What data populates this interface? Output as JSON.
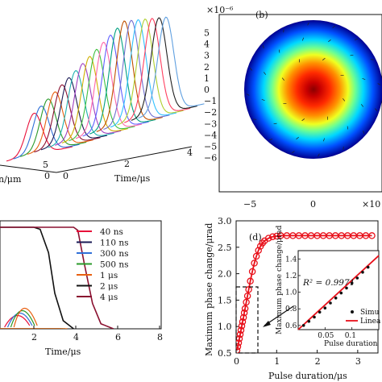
{
  "panel_a": {
    "x_label": "Time/μs",
    "x_ticks": [
      "0",
      "2",
      "4"
    ],
    "y_tick_visible": "5",
    "y_tick_0": "0",
    "y_label_fragment": "n/μm"
  },
  "panel_b": {
    "label": "(b)",
    "exponent": "×10⁻⁶",
    "exponent_right": "×10",
    "y_ticks": [
      "5",
      "4",
      "3",
      "2",
      "1",
      "0",
      "−1",
      "−2",
      "−3",
      "−4",
      "−5",
      "−6"
    ],
    "x_ticks": [
      "−5",
      "0"
    ],
    "colors": [
      "#00008f",
      "#0050ff",
      "#00d8ff",
      "#60ff90",
      "#e0ff20",
      "#ffa000",
      "#ff2a00",
      "#a00000"
    ]
  },
  "panel_c": {
    "x_label": "Time/μs",
    "x_ticks": [
      "2",
      "4",
      "6",
      "8"
    ],
    "legend": [
      {
        "label": "40 ns",
        "color": "#e8103a"
      },
      {
        "label": "110 ns",
        "color": "#1a1a55"
      },
      {
        "label": "300 ns",
        "color": "#3070d8"
      },
      {
        "label": "500 ns",
        "color": "#2a9a2a"
      },
      {
        "label": "1 μs",
        "color": "#e86010"
      },
      {
        "label": "2 μs",
        "color": "#111111"
      },
      {
        "label": "4 μs",
        "color": "#8a1030"
      }
    ]
  },
  "panel_d": {
    "label": "(d)",
    "y_label": "Maximum phase change/μrad",
    "x_label": "Pulse duration/μs",
    "y_ticks": [
      "0.5",
      "1.0",
      "1.5",
      "2.0",
      "2.5",
      "3.0"
    ],
    "x_ticks": [
      "0",
      "1",
      "2",
      "3"
    ],
    "inset": {
      "y_label": "Maximum phase change/μrad",
      "x_label": "Pulse duration",
      "y_ticks": [
        "0.6",
        "0.8",
        "1.0",
        "1.2",
        "1.4"
      ],
      "x_ticks": [
        "0.05",
        "0.1"
      ],
      "r2": "R² = 0.9971",
      "legend": [
        "Simu",
        "Linea"
      ]
    }
  },
  "chart_data": [
    {
      "type": "line",
      "panel": "c",
      "xlabel": "Time/μs",
      "xlim": [
        0,
        8
      ],
      "series": [
        {
          "name": "40 ns",
          "x": [
            0,
            1.9,
            2.2,
            2.5,
            2.9,
            3.2
          ],
          "y": [
            0.0,
            0.0,
            0.0,
            0.0,
            0.0,
            0.0
          ]
        },
        {
          "name": "110 ns",
          "x": [
            0,
            1.9,
            2.3,
            2.7,
            3.0,
            3.3
          ],
          "y": [
            0.0,
            0.0,
            0.0,
            0.0,
            0.0,
            0.0
          ]
        },
        {
          "name": "300 ns",
          "x": [
            0,
            1.9,
            2.3,
            2.7,
            3.1,
            3.4
          ],
          "y": [
            0.0,
            0.0,
            0.0,
            0.0,
            0.0,
            0.0
          ]
        },
        {
          "name": "500 ns",
          "x": [
            0,
            1.9,
            2.3,
            2.7,
            3.1,
            3.5
          ],
          "y": [
            0.0,
            0.0,
            0.0,
            0.0,
            0.0,
            0.0
          ]
        },
        {
          "name": "1 μs",
          "x": [
            0,
            1.9,
            2.3,
            2.8,
            3.2,
            3.6
          ],
          "y": [
            0.0,
            0.0,
            0.0,
            0.0,
            0.0,
            0.0
          ]
        },
        {
          "name": "2 μs",
          "x": [
            0,
            2.0,
            2.3,
            2.7,
            3.0,
            3.4,
            3.9
          ],
          "y": [
            1.0,
            1.0,
            0.98,
            0.75,
            0.35,
            0.08,
            0.0
          ]
        },
        {
          "name": "4 μs",
          "x": [
            0,
            3.9,
            4.1,
            4.4,
            4.8,
            5.2,
            5.8
          ],
          "y": [
            1.0,
            1.0,
            0.97,
            0.65,
            0.25,
            0.05,
            0.0
          ]
        }
      ]
    },
    {
      "type": "scatter",
      "panel": "d",
      "xlabel": "Pulse duration/μs",
      "ylabel": "Maximum phase change/μrad",
      "xlim": [
        0,
        3.5
      ],
      "ylim": [
        0.5,
        3.0
      ],
      "series": [
        {
          "name": "points",
          "x": [
            0.02,
            0.04,
            0.06,
            0.08,
            0.1,
            0.12,
            0.14,
            0.16,
            0.18,
            0.2,
            0.22,
            0.25,
            0.28,
            0.31,
            0.35,
            0.4,
            0.45,
            0.5,
            0.55,
            0.6,
            0.65,
            0.7,
            0.8,
            0.9,
            1.0,
            1.1,
            1.25,
            1.4,
            1.55,
            1.7,
            1.85,
            2.0,
            2.15,
            2.3,
            2.45,
            2.6,
            2.75,
            2.9,
            3.05,
            3.2,
            3.35
          ],
          "y": [
            0.55,
            0.62,
            0.69,
            0.77,
            0.85,
            0.93,
            1.01,
            1.09,
            1.17,
            1.26,
            1.34,
            1.46,
            1.58,
            1.7,
            1.86,
            2.04,
            2.2,
            2.33,
            2.44,
            2.52,
            2.58,
            2.62,
            2.67,
            2.7,
            2.71,
            2.72,
            2.72,
            2.72,
            2.72,
            2.72,
            2.72,
            2.72,
            2.72,
            2.72,
            2.72,
            2.72,
            2.72,
            2.72,
            2.72,
            2.72,
            2.72
          ]
        }
      ]
    },
    {
      "type": "scatter",
      "panel": "d-inset",
      "xlabel": "Pulse duration",
      "ylabel": "Maximum phase change/μrad",
      "xlim": [
        0,
        0.15
      ],
      "ylim": [
        0.55,
        1.5
      ],
      "series": [
        {
          "name": "Simu",
          "x": [
            0.01,
            0.02,
            0.03,
            0.04,
            0.05,
            0.06,
            0.07,
            0.08,
            0.09,
            0.1,
            0.11,
            0.12,
            0.13
          ],
          "y": [
            0.6,
            0.65,
            0.7,
            0.76,
            0.81,
            0.87,
            0.93,
            0.99,
            1.05,
            1.11,
            1.17,
            1.24,
            1.3
          ]
        },
        {
          "name": "Linea",
          "x": [
            0.0,
            0.15
          ],
          "y": [
            0.55,
            1.44
          ]
        }
      ]
    }
  ]
}
